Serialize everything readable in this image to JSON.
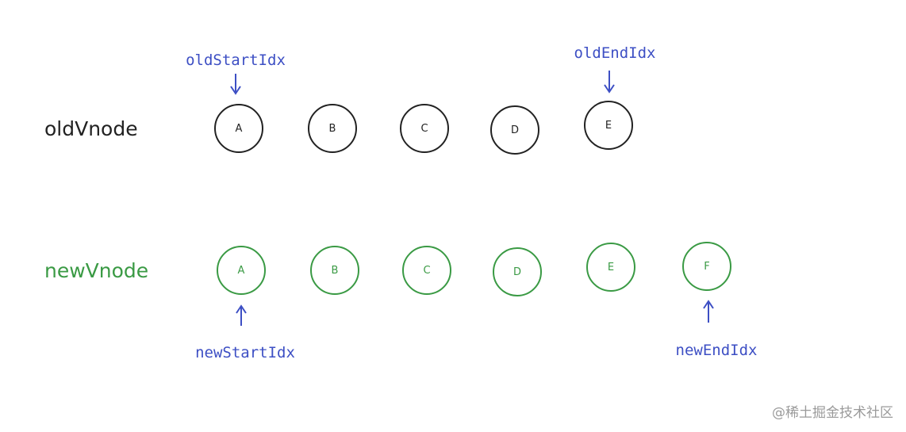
{
  "colors": {
    "old": "#222222",
    "new": "#3a9a44",
    "pointer": "#3d4fc4"
  },
  "old_row": {
    "label": "oldVnode",
    "nodes": [
      "A",
      "B",
      "C",
      "D",
      "E"
    ]
  },
  "new_row": {
    "label": "newVnode",
    "nodes": [
      "A",
      "B",
      "C",
      "D",
      "E",
      "F"
    ]
  },
  "pointers": {
    "old_start": "oldStartIdx",
    "old_end": "oldEndIdx",
    "new_start": "newStartIdx",
    "new_end": "newEndIdx"
  },
  "watermark": "@稀土掘金技术社区"
}
